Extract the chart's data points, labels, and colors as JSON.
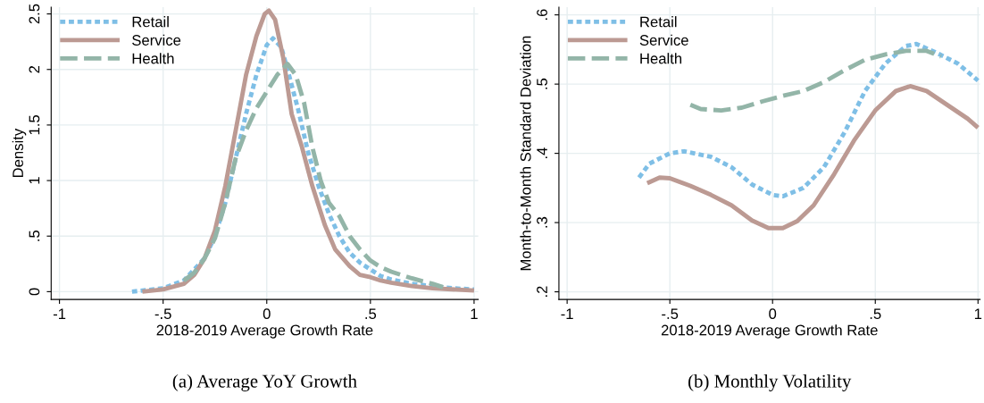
{
  "chart_data": [
    {
      "type": "line",
      "title": "(a) Average YoY Growth",
      "xlabel": "2018-2019 Average Growth Rate",
      "ylabel": "Density",
      "xlim": [
        -1.04,
        1.02
      ],
      "xticks": [
        {
          "value": -1,
          "label": "-1"
        },
        {
          "value": -0.5,
          "label": "-.5"
        },
        0,
        {
          "value": 0.5,
          "label": ".5"
        },
        1
      ],
      "ylim": [
        -0.07,
        2.56
      ],
      "yticks": [
        0,
        {
          "value": 0.5,
          "label": ".5"
        },
        1,
        1.5,
        2,
        2.5
      ],
      "grid": true,
      "legend": "top left",
      "series": [
        {
          "name": "Retail",
          "color": "#7fbfe6",
          "line_style": "dotted",
          "x": [
            -0.65,
            -0.5,
            -0.4,
            -0.3,
            -0.25,
            -0.2,
            -0.15,
            -0.1,
            -0.05,
            0,
            0.03,
            0.07,
            0.1,
            0.15,
            0.2,
            0.25,
            0.3,
            0.35,
            0.4,
            0.45,
            0.5,
            0.55,
            0.6,
            0.7,
            0.8,
            0.9,
            1.0
          ],
          "values": [
            0,
            0.03,
            0.1,
            0.3,
            0.5,
            0.8,
            1.2,
            1.6,
            1.95,
            2.22,
            2.28,
            2.2,
            2.0,
            1.65,
            1.25,
            0.95,
            0.7,
            0.5,
            0.35,
            0.26,
            0.2,
            0.14,
            0.11,
            0.07,
            0.05,
            0.03,
            0.02
          ]
        },
        {
          "name": "Service",
          "color": "#bc9a93",
          "line_style": "solid",
          "x": [
            -0.6,
            -0.5,
            -0.4,
            -0.35,
            -0.3,
            -0.25,
            -0.2,
            -0.15,
            -0.1,
            -0.05,
            -0.01,
            0.01,
            0.04,
            0.08,
            0.12,
            0.17,
            0.22,
            0.28,
            0.33,
            0.4,
            0.45,
            0.5,
            0.55,
            0.6,
            0.7,
            0.8,
            1.0
          ],
          "values": [
            0,
            0.02,
            0.07,
            0.15,
            0.3,
            0.55,
            0.95,
            1.45,
            1.95,
            2.3,
            2.5,
            2.53,
            2.45,
            2.1,
            1.6,
            1.3,
            0.95,
            0.6,
            0.38,
            0.23,
            0.15,
            0.13,
            0.1,
            0.08,
            0.05,
            0.03,
            0.01
          ]
        },
        {
          "name": "Health",
          "color": "#93b5a8",
          "line_style": "dashed",
          "x": [
            -0.4,
            -0.35,
            -0.3,
            -0.25,
            -0.2,
            -0.15,
            -0.1,
            -0.05,
            0,
            0.05,
            0.1,
            0.14,
            0.18,
            0.22,
            0.26,
            0.3,
            0.35,
            0.4,
            0.45,
            0.5,
            0.55,
            0.6,
            0.7,
            0.8,
            0.85
          ],
          "values": [
            0.1,
            0.17,
            0.3,
            0.48,
            0.8,
            1.2,
            1.45,
            1.65,
            1.8,
            1.95,
            2.05,
            1.95,
            1.7,
            1.3,
            1.0,
            0.8,
            0.68,
            0.5,
            0.38,
            0.28,
            0.22,
            0.18,
            0.12,
            0.07,
            0.04
          ]
        }
      ]
    },
    {
      "type": "line",
      "title": "(b) Monthly Volatility",
      "xlabel": "2018-2019 Average Growth Rate",
      "ylabel": "Month-to-Month Standard Deviation",
      "xlim": [
        -1.04,
        1.01
      ],
      "xticks": [
        {
          "value": -1,
          "label": "-1"
        },
        {
          "value": -0.5,
          "label": "-.5"
        },
        0,
        {
          "value": 0.5,
          "label": ".5"
        },
        1
      ],
      "ylim": [
        0.189,
        0.611
      ],
      "yticks": [
        {
          "value": 0.2,
          "label": ".2"
        },
        {
          "value": 0.3,
          "label": ".3"
        },
        {
          "value": 0.4,
          "label": ".4"
        },
        {
          "value": 0.5,
          "label": ".5"
        },
        {
          "value": 0.6,
          "label": ".6"
        }
      ],
      "grid": true,
      "legend": "top left",
      "series": [
        {
          "name": "Retail",
          "color": "#7fbfe6",
          "line_style": "dotted",
          "x": [
            -0.65,
            -0.6,
            -0.5,
            -0.43,
            -0.3,
            -0.2,
            -0.1,
            0,
            0.05,
            0.15,
            0.25,
            0.35,
            0.45,
            0.55,
            0.65,
            0.7,
            0.8,
            0.9,
            1.0
          ],
          "values": [
            0.365,
            0.385,
            0.4,
            0.403,
            0.395,
            0.38,
            0.355,
            0.34,
            0.338,
            0.35,
            0.38,
            0.43,
            0.49,
            0.53,
            0.555,
            0.558,
            0.545,
            0.53,
            0.505
          ]
        },
        {
          "name": "Service",
          "color": "#bc9a93",
          "line_style": "solid",
          "x": [
            -0.61,
            -0.55,
            -0.5,
            -0.4,
            -0.3,
            -0.2,
            -0.1,
            -0.02,
            0.05,
            0.12,
            0.2,
            0.3,
            0.4,
            0.5,
            0.6,
            0.67,
            0.75,
            0.8,
            0.9,
            0.95,
            1.0
          ],
          "values": [
            0.357,
            0.365,
            0.364,
            0.353,
            0.34,
            0.325,
            0.303,
            0.292,
            0.292,
            0.302,
            0.325,
            0.37,
            0.42,
            0.462,
            0.49,
            0.497,
            0.49,
            0.48,
            0.46,
            0.45,
            0.437
          ]
        },
        {
          "name": "Health",
          "color": "#93b5a8",
          "line_style": "dashed",
          "x": [
            -0.4,
            -0.35,
            -0.25,
            -0.15,
            -0.05,
            0.05,
            0.15,
            0.25,
            0.35,
            0.45,
            0.55,
            0.65,
            0.75,
            0.82
          ],
          "values": [
            0.47,
            0.464,
            0.462,
            0.466,
            0.475,
            0.483,
            0.49,
            0.503,
            0.52,
            0.535,
            0.543,
            0.548,
            0.548,
            0.54
          ]
        }
      ]
    }
  ]
}
